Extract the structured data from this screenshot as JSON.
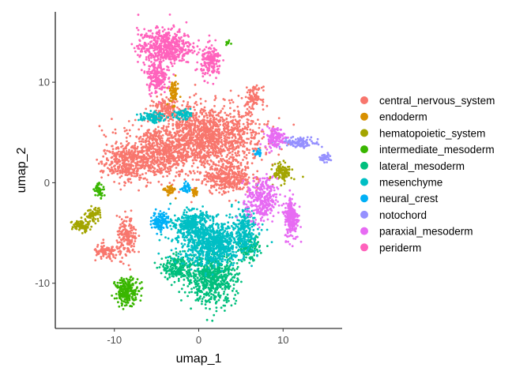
{
  "chart_data": {
    "type": "scatter",
    "title": "",
    "xlabel": "umap_1",
    "ylabel": "umap_2",
    "xlim": [
      -17,
      17
    ],
    "ylim": [
      -14.5,
      17
    ],
    "x_ticks": [
      -10,
      0,
      10
    ],
    "y_ticks": [
      -10,
      0,
      10
    ],
    "x_tick_labels": [
      "-10",
      "0",
      "10"
    ],
    "y_tick_labels": [
      "-10",
      "0",
      "10"
    ],
    "grid": false,
    "legend_position": "right",
    "series": [
      {
        "name": "central_nervous_system",
        "color": "#F8766D",
        "clusters": [
          {
            "cx": 1.0,
            "cy": 4.5,
            "rx": 6.5,
            "ry": 3.2,
            "n": 1400
          },
          {
            "cx": -5.0,
            "cy": 3.0,
            "rx": 4.0,
            "ry": 2.5,
            "n": 600
          },
          {
            "cx": -9.0,
            "cy": 2.0,
            "rx": 2.5,
            "ry": 1.8,
            "n": 300
          },
          {
            "cx": 3.5,
            "cy": 0.5,
            "rx": 2.8,
            "ry": 1.5,
            "n": 350
          },
          {
            "cx": -8.5,
            "cy": -5.5,
            "rx": 1.2,
            "ry": 2.0,
            "n": 180
          },
          {
            "cx": -11.0,
            "cy": -7.0,
            "rx": 1.5,
            "ry": 0.8,
            "n": 90
          },
          {
            "cx": -4.0,
            "cy": 7.5,
            "rx": 1.8,
            "ry": 1.0,
            "n": 120
          },
          {
            "cx": 6.5,
            "cy": 8.5,
            "rx": 1.0,
            "ry": 1.0,
            "n": 90
          }
        ]
      },
      {
        "name": "endoderm",
        "color": "#D89000",
        "clusters": [
          {
            "cx": -3.0,
            "cy": 9.0,
            "rx": 0.6,
            "ry": 1.2,
            "n": 70
          },
          {
            "cx": -3.5,
            "cy": -0.8,
            "rx": 0.6,
            "ry": 0.5,
            "n": 50
          },
          {
            "cx": -0.5,
            "cy": -1.0,
            "rx": 0.4,
            "ry": 0.4,
            "n": 25
          }
        ]
      },
      {
        "name": "hematopoietic_system",
        "color": "#A3A500",
        "clusters": [
          {
            "cx": 10.0,
            "cy": 1.0,
            "rx": 1.1,
            "ry": 0.9,
            "n": 120
          },
          {
            "cx": -14.0,
            "cy": -4.3,
            "rx": 1.0,
            "ry": 0.6,
            "n": 90
          },
          {
            "cx": -12.5,
            "cy": -3.2,
            "rx": 0.9,
            "ry": 0.7,
            "n": 70
          }
        ]
      },
      {
        "name": "intermediate_mesoderm",
        "color": "#39B600",
        "clusters": [
          {
            "cx": -8.5,
            "cy": -10.8,
            "rx": 1.4,
            "ry": 1.3,
            "n": 220
          },
          {
            "cx": -11.8,
            "cy": -0.7,
            "rx": 0.6,
            "ry": 0.7,
            "n": 50
          },
          {
            "cx": 3.5,
            "cy": 14.0,
            "rx": 0.3,
            "ry": 0.4,
            "n": 8
          }
        ]
      },
      {
        "name": "lateral_mesoderm",
        "color": "#00BF7D",
        "clusters": [
          {
            "cx": 1.5,
            "cy": -9.5,
            "rx": 3.0,
            "ry": 2.5,
            "n": 600
          },
          {
            "cx": -2.5,
            "cy": -8.5,
            "rx": 1.8,
            "ry": 1.2,
            "n": 200
          },
          {
            "cx": 6.0,
            "cy": -6.5,
            "rx": 1.2,
            "ry": 1.2,
            "n": 120
          }
        ]
      },
      {
        "name": "mesenchyme",
        "color": "#00BFC4",
        "clusters": [
          {
            "cx": 1.5,
            "cy": -6.0,
            "rx": 4.0,
            "ry": 2.2,
            "n": 900
          },
          {
            "cx": -1.0,
            "cy": -4.0,
            "rx": 2.0,
            "ry": 1.2,
            "n": 250
          },
          {
            "cx": 5.5,
            "cy": -4.5,
            "rx": 1.5,
            "ry": 2.0,
            "n": 200
          },
          {
            "cx": -5.5,
            "cy": 6.5,
            "rx": 1.5,
            "ry": 0.5,
            "n": 80
          },
          {
            "cx": -2.0,
            "cy": 6.8,
            "rx": 1.0,
            "ry": 0.5,
            "n": 60
          }
        ]
      },
      {
        "name": "neural_crest",
        "color": "#00B0F6",
        "clusters": [
          {
            "cx": -4.5,
            "cy": -3.8,
            "rx": 1.0,
            "ry": 1.0,
            "n": 120
          },
          {
            "cx": -1.5,
            "cy": -0.5,
            "rx": 0.5,
            "ry": 0.5,
            "n": 30
          },
          {
            "cx": 7.0,
            "cy": 3.0,
            "rx": 0.4,
            "ry": 0.4,
            "n": 20
          }
        ]
      },
      {
        "name": "notochord",
        "color": "#9590FF",
        "clusters": [
          {
            "cx": 12.0,
            "cy": 4.0,
            "rx": 2.2,
            "ry": 0.5,
            "n": 120
          },
          {
            "cx": 15.0,
            "cy": 2.5,
            "rx": 0.7,
            "ry": 0.4,
            "n": 40
          }
        ]
      },
      {
        "name": "paraxial_mesoderm",
        "color": "#E76BF3",
        "clusters": [
          {
            "cx": 7.5,
            "cy": -1.8,
            "rx": 1.8,
            "ry": 2.2,
            "n": 320
          },
          {
            "cx": 11.0,
            "cy": -3.5,
            "rx": 0.8,
            "ry": 2.2,
            "n": 220
          },
          {
            "cx": 9.0,
            "cy": 4.5,
            "rx": 1.2,
            "ry": 1.0,
            "n": 120
          }
        ]
      },
      {
        "name": "periderm",
        "color": "#FF62BC",
        "clusters": [
          {
            "cx": -4.0,
            "cy": 13.5,
            "rx": 3.2,
            "ry": 1.8,
            "n": 550
          },
          {
            "cx": -5.0,
            "cy": 10.5,
            "rx": 1.2,
            "ry": 1.6,
            "n": 180
          },
          {
            "cx": 1.5,
            "cy": 12.0,
            "rx": 1.2,
            "ry": 1.6,
            "n": 160
          }
        ]
      }
    ]
  }
}
